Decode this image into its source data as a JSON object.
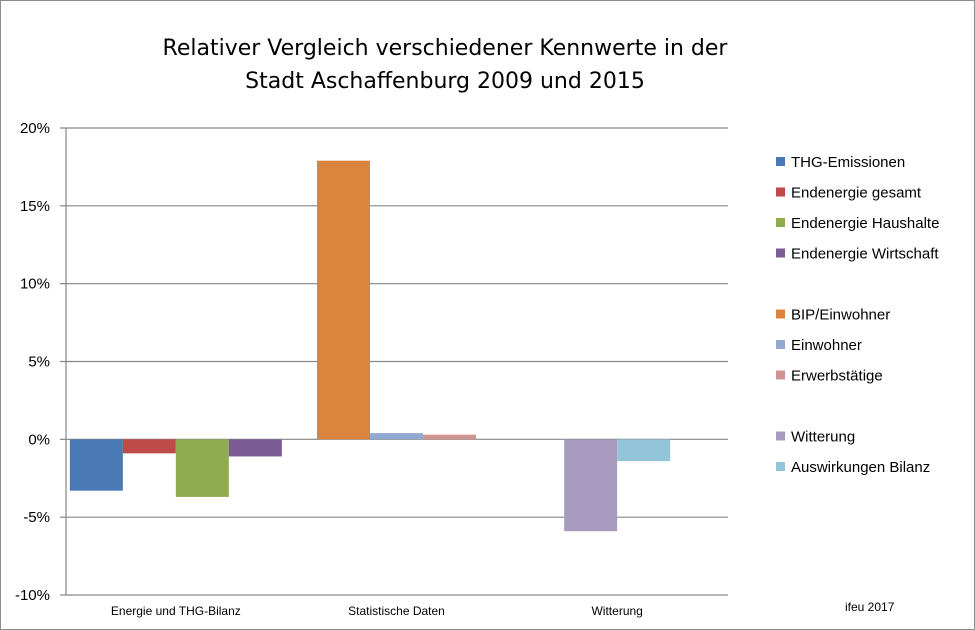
{
  "chart_data": {
    "type": "bar",
    "title": [
      "Relativer Vergleich verschiedener Kennwerte in der",
      "Stadt Aschaffenburg 2009 und 2015"
    ],
    "ylim": [
      -10,
      20
    ],
    "yticks": [
      -10,
      -5,
      0,
      5,
      10,
      15,
      20
    ],
    "ytick_labels": [
      "-10%",
      "-5%",
      "0%",
      "5%",
      "10%",
      "15%",
      "20%"
    ],
    "grid": true,
    "legend_position": "right",
    "categories": [
      "Energie und THG-Bilanz",
      "Statistische Daten",
      "Witterung"
    ],
    "series": [
      {
        "name": "THG-Emissionen",
        "category": 0,
        "value": -3.3,
        "color": "#4a7ab5"
      },
      {
        "name": "Endenergie gesamt",
        "category": 0,
        "value": -0.9,
        "color": "#be4b48"
      },
      {
        "name": "Endenergie Haushalte",
        "category": 0,
        "value": -3.7,
        "color": "#8fad4f"
      },
      {
        "name": "Endenergie Wirtschaft",
        "category": 0,
        "value": -1.1,
        "color": "#7a5c92"
      },
      {
        "name": "BIP/Einwohner",
        "category": 1,
        "value": 17.9,
        "color": "#db843d"
      },
      {
        "name": "Einwohner",
        "category": 1,
        "value": 0.4,
        "color": "#93a9cf"
      },
      {
        "name": "Erwerbstätige",
        "category": 1,
        "value": 0.3,
        "color": "#d09493"
      },
      {
        "name": "Witterung",
        "category": 2,
        "value": -5.9,
        "color": "#a99bc0"
      },
      {
        "name": "Auswirkungen Bilanz",
        "category": 2,
        "value": -1.4,
        "color": "#93c5d8"
      }
    ],
    "legend_groups": [
      [
        0,
        1,
        2,
        3
      ],
      [
        4,
        5,
        6
      ],
      [
        7,
        8
      ]
    ],
    "annotation": "ifeu 2017"
  }
}
